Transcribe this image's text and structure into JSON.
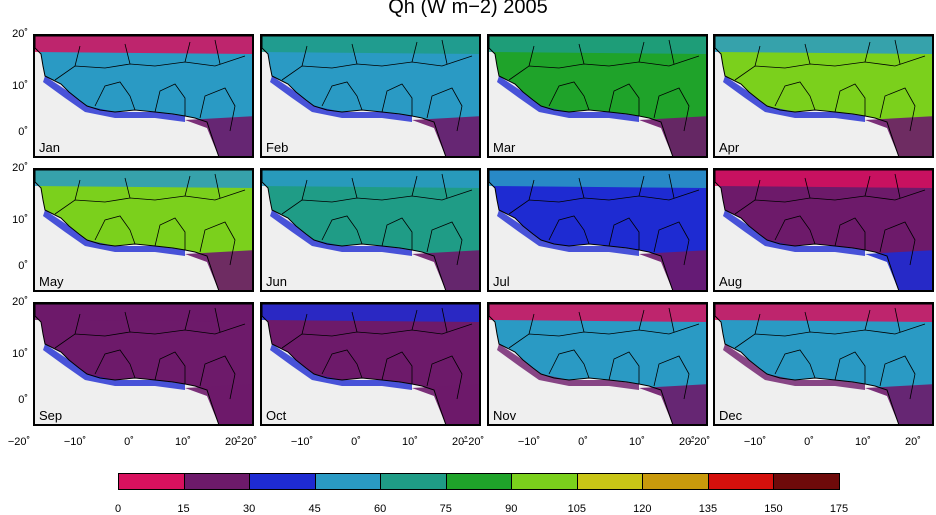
{
  "title": "Qh (W m−2) 2005",
  "panels": [
    {
      "month": "Jan",
      "fill": "#2a9ac4",
      "north": "#d8115e",
      "south": "#6d1a6a",
      "coast": "#1e2bd2"
    },
    {
      "month": "Feb",
      "fill": "#2a9ac4",
      "north": "#1f9c86",
      "south": "#6d1a6a",
      "coast": "#1e2bd2"
    },
    {
      "month": "Mar",
      "fill": "#1fa32a",
      "north": "#1f9c86",
      "south": "#6d1a6a",
      "coast": "#1e2bd2"
    },
    {
      "month": "Apr",
      "fill": "#7bd01c",
      "north": "#2a9ac4",
      "south": "#6d1a6a",
      "coast": "#1e2bd2"
    },
    {
      "month": "May",
      "fill": "#7bd01c",
      "north": "#2a9ac4",
      "south": "#6d1a6a",
      "coast": "#1e2bd2"
    },
    {
      "month": "Jun",
      "fill": "#1f9c86",
      "north": "#2a9ac4",
      "south": "#6d1a6a",
      "coast": "#1e2bd2"
    },
    {
      "month": "Jul",
      "fill": "#1e2bd2",
      "north": "#2a9ac4",
      "south": "#6d1a6a",
      "coast": "#1e2bd2"
    },
    {
      "month": "Aug",
      "fill": "#6d1a6a",
      "north": "#d8115e",
      "south": "#1e2bd2",
      "coast": "#1e2bd2"
    },
    {
      "month": "Sep",
      "fill": "#6d1a6a",
      "north": "#6d1a6a",
      "south": "#6d1a6a",
      "coast": "#1e2bd2"
    },
    {
      "month": "Oct",
      "fill": "#6d1a6a",
      "north": "#1e2bd2",
      "south": "#6d1a6a",
      "coast": "#1e2bd2"
    },
    {
      "month": "Nov",
      "fill": "#2a9ac4",
      "north": "#d8115e",
      "south": "#6d1a6a",
      "coast": "#6d1a6a"
    },
    {
      "month": "Dec",
      "fill": "#2a9ac4",
      "north": "#d8115e",
      "south": "#6d1a6a",
      "coast": "#6d1a6a"
    }
  ],
  "y_ticks": [
    "20˚",
    "10˚",
    "0˚"
  ],
  "x_ticks": [
    "−20˚",
    "−10˚",
    "0˚",
    "10˚",
    "20˚"
  ],
  "colorbar": {
    "labels": [
      "0",
      "15",
      "30",
      "45",
      "60",
      "75",
      "90",
      "105",
      "120",
      "135",
      "150",
      "175"
    ],
    "colors": [
      "#d8115e",
      "#6d1a6a",
      "#1e2bd2",
      "#2a9ac4",
      "#1f9c86",
      "#1fa32a",
      "#7bd01c",
      "#c9c516",
      "#c99a0c",
      "#d4100c",
      "#6e0a0a"
    ]
  }
}
